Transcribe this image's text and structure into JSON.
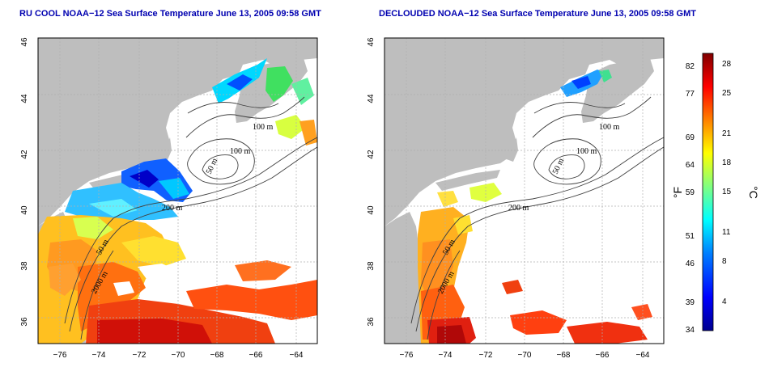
{
  "panels": [
    {
      "title": "RU COOL NOAA−12 Sea Surface Temperature June 13, 2005 09:58 GMT",
      "y_ticks": [
        "36",
        "38",
        "40",
        "42",
        "44",
        "46"
      ],
      "x_ticks": [
        "−76",
        "−74",
        "−72",
        "−70",
        "−68",
        "−66",
        "−64"
      ],
      "contour_labels": [
        "100 m",
        "100 m",
        "50 m",
        "200 m",
        "50 m",
        "2000 m"
      ]
    },
    {
      "title": "DECLOUDED NOAA−12 Sea Surface Temperature June 13, 2005 09:58 GMT",
      "y_ticks": [
        "36",
        "38",
        "40",
        "42",
        "44",
        "46"
      ],
      "x_ticks": [
        "−76",
        "−74",
        "−72",
        "−70",
        "−68",
        "−66",
        "−64"
      ],
      "contour_labels": [
        "100 m",
        "100 m",
        "50 m",
        "200 m",
        "50 m",
        "2000 m"
      ]
    }
  ],
  "colorbar": {
    "fahrenheit_unit": "°F",
    "celsius_unit": "°C",
    "fahrenheit_ticks": [
      "82",
      "77",
      "69",
      "64",
      "59",
      "51",
      "46",
      "39",
      "34"
    ],
    "celsius_ticks": [
      "28",
      "25",
      "21",
      "18",
      "15",
      "11",
      "8",
      "4"
    ],
    "colors": [
      "#00008f",
      "#0000ff",
      "#0080ff",
      "#00ffff",
      "#80ff80",
      "#ffff00",
      "#ff8000",
      "#ff0000",
      "#800000"
    ]
  },
  "map_colors": {
    "land": "#bebebe",
    "water": "#ffffff",
    "grid": "#b0b0b0"
  }
}
